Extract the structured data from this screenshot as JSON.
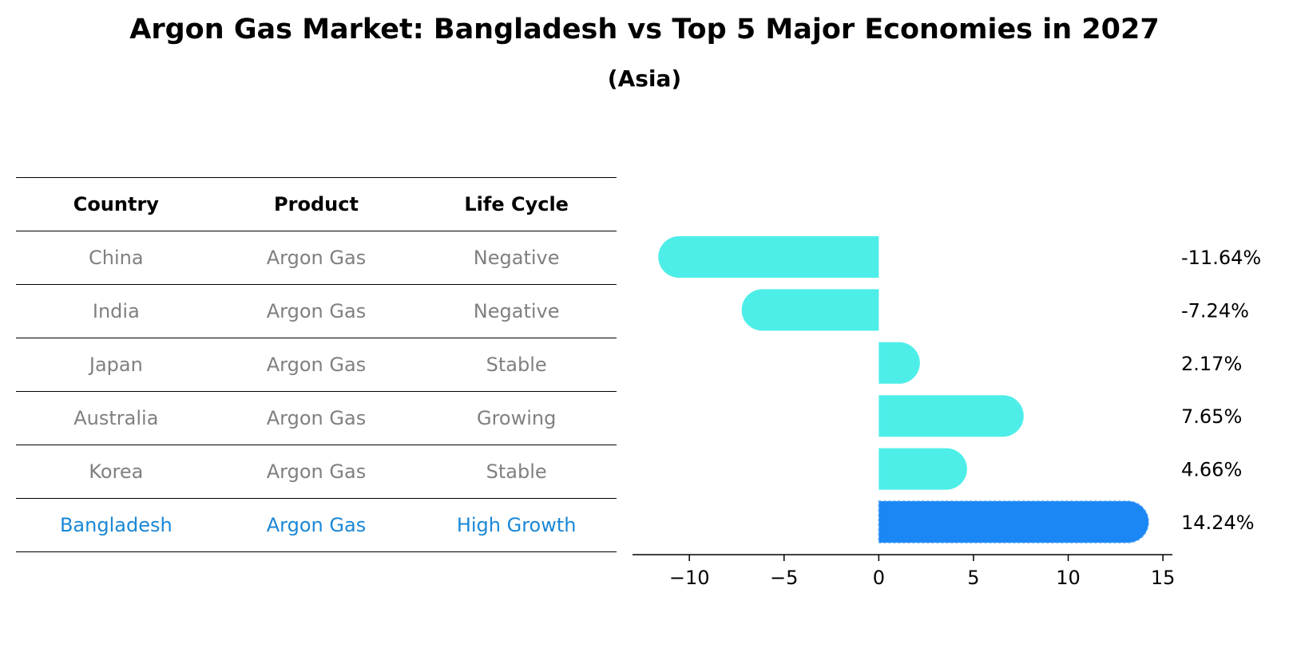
{
  "chart_data": {
    "type": "bar",
    "orientation": "horizontal",
    "title": "Argon Gas Market: Bangladesh vs Top 5 Major Economies in 2027",
    "subtitle": "(Asia)",
    "table": {
      "headers": [
        "Country",
        "Product",
        "Life Cycle"
      ],
      "rows": [
        [
          "China",
          "Argon Gas",
          "Negative"
        ],
        [
          "India",
          "Argon Gas",
          "Negative"
        ],
        [
          "Japan",
          "Argon Gas",
          "Stable"
        ],
        [
          "Australia",
          "Argon Gas",
          "Growing"
        ],
        [
          "Korea",
          "Argon Gas",
          "Stable"
        ],
        [
          "Bangladesh",
          "Argon Gas",
          "High Growth"
        ]
      ],
      "highlight_row": 5
    },
    "categories": [
      "China",
      "India",
      "Japan",
      "Australia",
      "Korea",
      "Bangladesh"
    ],
    "values": [
      -11.64,
      -7.24,
      2.17,
      7.65,
      4.66,
      14.24
    ],
    "value_labels": [
      "-11.64%",
      "-7.24%",
      "2.17%",
      "7.65%",
      "4.66%",
      "14.24%"
    ],
    "xlim": [
      -13,
      15.5
    ],
    "xticks": [
      -10,
      -5,
      0,
      5,
      10,
      15
    ],
    "xtick_labels": [
      "−10",
      "−5",
      "0",
      "5",
      "10",
      "15"
    ],
    "grid": false,
    "colors": {
      "bar": "#4deee8",
      "highlight_bar": "#1a87f5",
      "table_text": "#808080",
      "highlight_text": "#1a87d6",
      "axis": "#000000"
    }
  }
}
